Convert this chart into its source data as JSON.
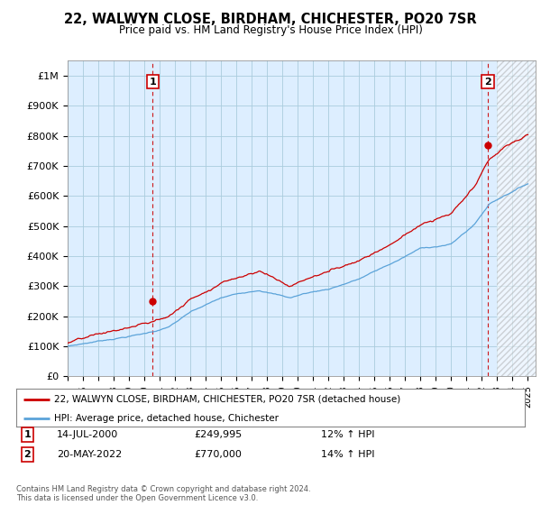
{
  "title": "22, WALWYN CLOSE, BIRDHAM, CHICHESTER, PO20 7SR",
  "subtitle": "Price paid vs. HM Land Registry's House Price Index (HPI)",
  "ylabel_ticks": [
    "£0",
    "£100K",
    "£200K",
    "£300K",
    "£400K",
    "£500K",
    "£600K",
    "£700K",
    "£800K",
    "£900K",
    "£1M"
  ],
  "ytick_values": [
    0,
    100000,
    200000,
    300000,
    400000,
    500000,
    600000,
    700000,
    800000,
    900000,
    1000000
  ],
  "ylim": [
    0,
    1050000
  ],
  "xlim_start": 1995.0,
  "xlim_end": 2025.5,
  "sale1_date": 2000.536,
  "sale1_price": 249995,
  "sale2_date": 2022.384,
  "sale2_price": 770000,
  "hpi_color": "#5ba3d9",
  "price_color": "#cc0000",
  "sale_marker_color": "#cc0000",
  "vline_color": "#cc0000",
  "chart_bg_color": "#ddeeff",
  "hatch_start": 2023.0,
  "background_color": "#ffffff",
  "grid_color": "#aaccdd",
  "legend_line1": "22, WALWYN CLOSE, BIRDHAM, CHICHESTER, PO20 7SR (detached house)",
  "legend_line2": "HPI: Average price, detached house, Chichester",
  "note1_date": "14-JUL-2000",
  "note1_price": "£249,995",
  "note1_hpi": "12% ↑ HPI",
  "note2_date": "20-MAY-2022",
  "note2_price": "£770,000",
  "note2_hpi": "14% ↑ HPI",
  "footer": "Contains HM Land Registry data © Crown copyright and database right 2024.\nThis data is licensed under the Open Government Licence v3.0."
}
